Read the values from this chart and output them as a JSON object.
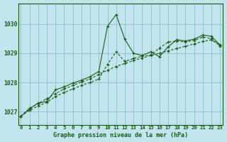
{
  "title": "Graphe pression niveau de la mer (hPa)",
  "background_color": "#c2e4ec",
  "plot_bg_color": "#c2e4ec",
  "grid_color": "#82b8c4",
  "line_color": "#1a5c1a",
  "x_labels": [
    "0",
    "1",
    "2",
    "3",
    "4",
    "5",
    "6",
    "7",
    "8",
    "9",
    "10",
    "11",
    "12",
    "13",
    "14",
    "15",
    "16",
    "17",
    "18",
    "19",
    "20",
    "21",
    "22",
    "23"
  ],
  "yticks": [
    1027,
    1028,
    1029,
    1030
  ],
  "ylim": [
    1026.55,
    1030.7
  ],
  "xlim": [
    -0.3,
    23.3
  ],
  "series1": [
    1026.85,
    1027.1,
    1027.3,
    1027.35,
    1027.75,
    1027.85,
    1027.98,
    1028.08,
    1028.2,
    1028.38,
    1029.92,
    1030.32,
    1029.48,
    1029.0,
    1028.92,
    1029.05,
    1028.88,
    1029.22,
    1029.46,
    1029.42,
    1029.48,
    1029.62,
    1029.58,
    1029.28
  ],
  "series2": [
    1026.85,
    1027.12,
    1027.28,
    1027.45,
    1027.62,
    1027.78,
    1027.9,
    1028.02,
    1028.12,
    1028.28,
    1028.42,
    1028.55,
    1028.65,
    1028.75,
    1028.84,
    1028.92,
    1029.0,
    1029.08,
    1029.16,
    1029.24,
    1029.32,
    1029.4,
    1029.46,
    1029.26
  ],
  "series3": [
    1026.85,
    1027.05,
    1027.2,
    1027.32,
    1027.52,
    1027.66,
    1027.78,
    1027.9,
    1028.0,
    1028.12,
    1028.62,
    1029.05,
    1028.72,
    1028.82,
    1028.9,
    1028.94,
    1029.18,
    1029.38,
    1029.42,
    1029.38,
    1029.44,
    1029.55,
    1029.5,
    1029.25
  ]
}
